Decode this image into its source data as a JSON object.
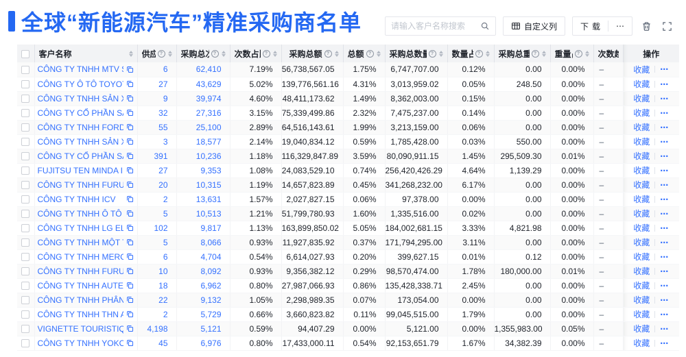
{
  "colors": {
    "brand_blue": "#2468F2",
    "link_blue": "#3370FF",
    "header_bg": "#F2F3F5"
  },
  "header": {
    "title": "全球“新能源汽车”精准采购商名单"
  },
  "toolbar": {
    "search_placeholder": "请输入客户名称搜索",
    "custom_columns_label": "自定义列",
    "download_label": "下载",
    "more_label": "⋯"
  },
  "table": {
    "columns": [
      {
        "key": "name",
        "label": "客户名称",
        "info": false,
        "sort": true
      },
      {
        "key": "supplier",
        "label": "供应商",
        "info": true,
        "sort": true
      },
      {
        "key": "purchases",
        "label": "采购总次数",
        "info": true,
        "sort": true
      },
      {
        "key": "count_pct",
        "label": "次数占比",
        "info": true,
        "sort": true
      },
      {
        "key": "amount",
        "label": "采购总额",
        "info": true,
        "sort": true
      },
      {
        "key": "amount_pct",
        "label": "总额占比",
        "info": true,
        "sort": true
      },
      {
        "key": "qty",
        "label": "采购总数量",
        "info": true,
        "sort": true
      },
      {
        "key": "qty_pct",
        "label": "数量占比",
        "info": true,
        "sort": true
      },
      {
        "key": "weight",
        "label": "采购总重量",
        "info": true,
        "sort": true
      },
      {
        "key": "weight_pct",
        "label": "重量占比",
        "info": true,
        "sort": true
      },
      {
        "key": "trend",
        "label": "次数趋势",
        "info": false,
        "sort": false
      },
      {
        "key": "ops",
        "label": "操作",
        "info": false,
        "sort": false
      }
    ],
    "row_actions": {
      "favorite_label": "收藏",
      "more_label": "⋯"
    },
    "rows": [
      {
        "name": "CÔNG TY TNHH MTV SẢN XUẤ...",
        "supplier": "6",
        "purchases": "62,410",
        "count_pct": "7.19%",
        "amount": "56,738,567.05",
        "amount_pct": "1.75%",
        "qty": "6,747,707.00",
        "qty_pct": "0.12%",
        "weight": "0.00",
        "weight_pct": "0.00%",
        "trend": "–"
      },
      {
        "name": "CÔNG TY Ô TÔ TOYOTA VIỆT ...",
        "supplier": "27",
        "purchases": "43,629",
        "count_pct": "5.02%",
        "amount": "139,776,561.16",
        "amount_pct": "4.31%",
        "qty": "3,013,959.02",
        "qty_pct": "0.05%",
        "weight": "248.50",
        "weight_pct": "0.00%",
        "trend": "–"
      },
      {
        "name": "CÔNG TY TNHH SẢN XUẤT VÀ ...",
        "supplier": "9",
        "purchases": "39,974",
        "count_pct": "4.60%",
        "amount": "48,411,173.62",
        "amount_pct": "1.49%",
        "qty": "8,362,003.00",
        "qty_pct": "0.15%",
        "weight": "0.00",
        "weight_pct": "0.00%",
        "trend": "–"
      },
      {
        "name": "CÔNG TY CỔ PHẦN SẢN XUẤT...",
        "supplier": "32",
        "purchases": "27,316",
        "count_pct": "3.15%",
        "amount": "75,339,499.86",
        "amount_pct": "2.32%",
        "qty": "7,475,237.00",
        "qty_pct": "0.14%",
        "weight": "0.00",
        "weight_pct": "0.00%",
        "trend": "–"
      },
      {
        "name": "CÔNG TY TNHH FORD VIỆT NAM",
        "supplier": "55",
        "purchases": "25,100",
        "count_pct": "2.89%",
        "amount": "64,516,143.61",
        "amount_pct": "1.99%",
        "qty": "3,213,159.00",
        "qty_pct": "0.06%",
        "weight": "0.00",
        "weight_pct": "0.00%",
        "trend": "–"
      },
      {
        "name": "CÔNG TY TNHH SẢN XUẤT VÀ ...",
        "supplier": "3",
        "purchases": "18,577",
        "count_pct": "2.14%",
        "amount": "19,040,834.12",
        "amount_pct": "0.59%",
        "qty": "1,785,428.00",
        "qty_pct": "0.03%",
        "weight": "550.00",
        "weight_pct": "0.00%",
        "trend": "–"
      },
      {
        "name": "CÔNG TY CỔ PHẦN SẢN XUẤT...",
        "supplier": "391",
        "purchases": "10,236",
        "count_pct": "1.18%",
        "amount": "116,329,847.89",
        "amount_pct": "3.59%",
        "qty": "80,090,911.15",
        "qty_pct": "1.45%",
        "weight": "295,509.30",
        "weight_pct": "0.01%",
        "trend": "–"
      },
      {
        "name": "FUJITSU TEN MINDA INDIA PVT...",
        "supplier": "27",
        "purchases": "9,353",
        "count_pct": "1.08%",
        "amount": "24,083,529.10",
        "amount_pct": "0.74%",
        "qty": "256,420,426.29",
        "qty_pct": "4.64%",
        "weight": "1,139.29",
        "weight_pct": "0.00%",
        "trend": "–"
      },
      {
        "name": "CÔNG TY TNHH FURUKAWA A...",
        "supplier": "20",
        "purchases": "10,315",
        "count_pct": "1.19%",
        "amount": "14,657,823.89",
        "amount_pct": "0.45%",
        "qty": "341,268,232.00",
        "qty_pct": "6.17%",
        "weight": "0.00",
        "weight_pct": "0.00%",
        "trend": "–"
      },
      {
        "name": "CÔNG TY TNHH ICV",
        "supplier": "2",
        "purchases": "13,631",
        "count_pct": "1.57%",
        "amount": "2,027,827.15",
        "amount_pct": "0.06%",
        "qty": "97,378.00",
        "qty_pct": "0.00%",
        "weight": "0.00",
        "weight_pct": "0.00%",
        "trend": "–"
      },
      {
        "name": "CÔNG TY TNHH Ô TÔ MITSUBI...",
        "supplier": "5",
        "purchases": "10,513",
        "count_pct": "1.21%",
        "amount": "51,799,780.93",
        "amount_pct": "1.60%",
        "qty": "1,335,516.00",
        "qty_pct": "0.02%",
        "weight": "0.00",
        "weight_pct": "0.00%",
        "trend": "–"
      },
      {
        "name": "CÔNG TY TNHH LG ELECTRON...",
        "supplier": "102",
        "purchases": "9,817",
        "count_pct": "1.13%",
        "amount": "163,899,850.02",
        "amount_pct": "5.05%",
        "qty": "184,002,681.15",
        "qty_pct": "3.33%",
        "weight": "4,821.98",
        "weight_pct": "0.00%",
        "trend": "–"
      },
      {
        "name": "CÔNG TY TNHH MỘT THÀNH V...",
        "supplier": "5",
        "purchases": "8,066",
        "count_pct": "0.93%",
        "amount": "11,927,835.92",
        "amount_pct": "0.37%",
        "qty": "171,794,295.00",
        "qty_pct": "3.11%",
        "weight": "0.00",
        "weight_pct": "0.00%",
        "trend": "–"
      },
      {
        "name": "CÔNG TY TNHH MERCEDES–B...",
        "supplier": "6",
        "purchases": "4,704",
        "count_pct": "0.54%",
        "amount": "6,614,027.93",
        "amount_pct": "0.20%",
        "qty": "399,627.15",
        "qty_pct": "0.01%",
        "weight": "0.12",
        "weight_pct": "0.00%",
        "trend": "–"
      },
      {
        "name": "CÔNG TY TNHH FURUKAWA A...",
        "supplier": "10",
        "purchases": "8,092",
        "count_pct": "0.93%",
        "amount": "9,356,382.12",
        "amount_pct": "0.29%",
        "qty": "98,570,474.00",
        "qty_pct": "1.78%",
        "weight": "180,000.00",
        "weight_pct": "0.01%",
        "trend": "–"
      },
      {
        "name": "CÔNG TY TNHH AUTEL VIỆT N...",
        "supplier": "18",
        "purchases": "6,962",
        "count_pct": "0.80%",
        "amount": "27,987,066.93",
        "amount_pct": "0.86%",
        "qty": "135,428,338.71",
        "qty_pct": "2.45%",
        "weight": "0.00",
        "weight_pct": "0.00%",
        "trend": "–"
      },
      {
        "name": "CÔNG TY TNHH PHÂN PHỐI T...",
        "supplier": "22",
        "purchases": "9,132",
        "count_pct": "1.05%",
        "amount": "2,298,989.35",
        "amount_pct": "0.07%",
        "qty": "173,054.00",
        "qty_pct": "0.00%",
        "weight": "0.00",
        "weight_pct": "0.00%",
        "trend": "–"
      },
      {
        "name": "CÔNG TY TNHH THN AUTOPAR...",
        "supplier": "2",
        "purchases": "5,729",
        "count_pct": "0.66%",
        "amount": "3,660,823.82",
        "amount_pct": "0.11%",
        "qty": "99,045,515.00",
        "qty_pct": "1.79%",
        "weight": "0.00",
        "weight_pct": "0.00%",
        "trend": "–"
      },
      {
        "name": "VIGNETTE TOURISTIQUE G UNI...",
        "supplier": "4,198",
        "purchases": "5,121",
        "count_pct": "0.59%",
        "amount": "94,407.29",
        "amount_pct": "0.00%",
        "qty": "5,121.00",
        "qty_pct": "0.00%",
        "weight": "1,355,983.00",
        "weight_pct": "0.05%",
        "trend": "–"
      },
      {
        "name": "CÔNG TY TNHH YOKOWO VIỆT...",
        "supplier": "45",
        "purchases": "6,976",
        "count_pct": "0.80%",
        "amount": "17,433,000.11",
        "amount_pct": "0.54%",
        "qty": "92,153,651.79",
        "qty_pct": "1.67%",
        "weight": "34,382.39",
        "weight_pct": "0.00%",
        "trend": "–"
      }
    ]
  }
}
